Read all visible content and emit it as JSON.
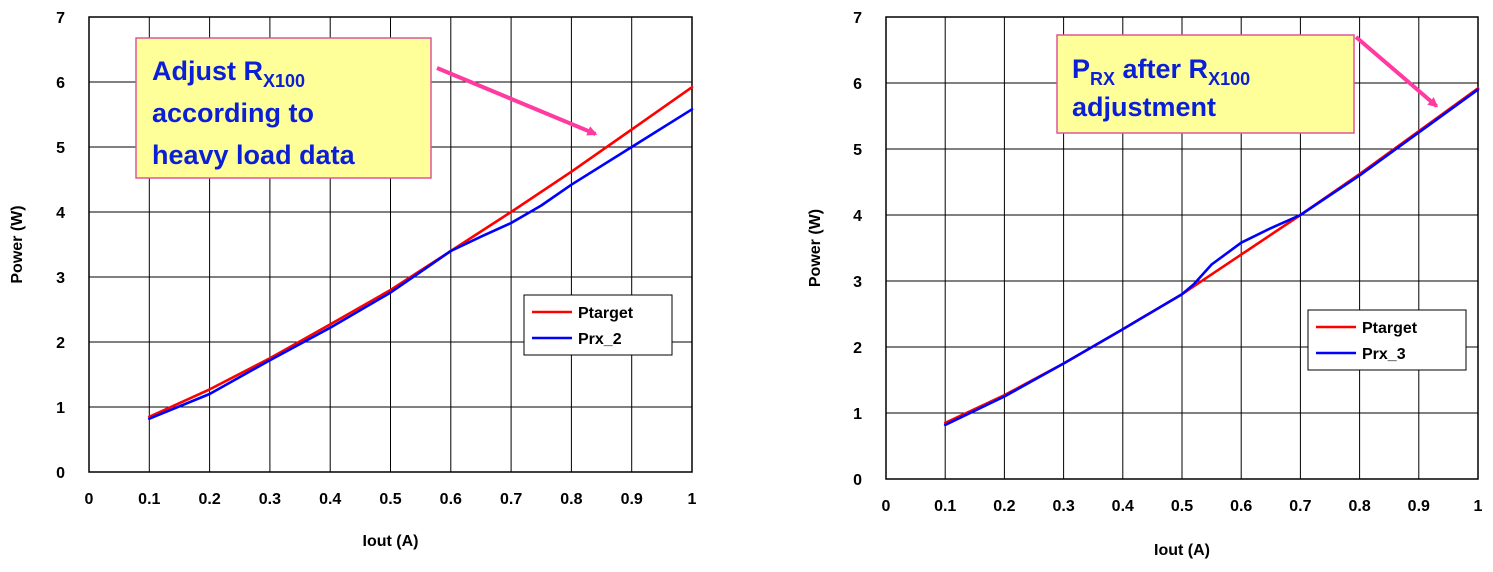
{
  "chart_data": [
    {
      "type": "line",
      "xlabel": "Iout (A)",
      "ylabel": "Power (W)",
      "xlim": [
        0,
        1
      ],
      "ylim": [
        0,
        7
      ],
      "xticks": [
        "0",
        "0.1",
        "0.2",
        "0.3",
        "0.4",
        "0.5",
        "0.6",
        "0.7",
        "0.8",
        "0.9",
        "1"
      ],
      "yticks": [
        "0",
        "1",
        "2",
        "3",
        "4",
        "5",
        "6",
        "7"
      ],
      "grid": true,
      "legend_position": "right-middle",
      "series": [
        {
          "name": "Ptarget",
          "color": "#ff0000",
          "x": [
            0.1,
            0.2,
            0.3,
            0.4,
            0.5,
            0.6,
            0.7,
            0.8,
            0.9,
            1.0
          ],
          "y": [
            0.85,
            1.27,
            1.75,
            2.27,
            2.8,
            3.4,
            4.0,
            4.62,
            5.27,
            5.92
          ]
        },
        {
          "name": "Prx_2",
          "color": "#0000ff",
          "x": [
            0.1,
            0.2,
            0.3,
            0.4,
            0.5,
            0.55,
            0.6,
            0.65,
            0.7,
            0.75,
            0.8,
            0.9,
            1.0
          ],
          "y": [
            0.82,
            1.2,
            1.72,
            2.22,
            2.76,
            3.08,
            3.4,
            3.62,
            3.83,
            4.1,
            4.42,
            5.0,
            5.58
          ]
        }
      ],
      "callout": {
        "lines": [
          {
            "text": "Adjust R",
            "sub": "X100"
          },
          {
            "text": "according to",
            "sub": ""
          },
          {
            "text": "heavy load data",
            "sub": ""
          }
        ],
        "arrow_target": {
          "x": 0.84,
          "y": 5.2
        }
      }
    },
    {
      "type": "line",
      "xlabel": "Iout (A)",
      "ylabel": "Power (W)",
      "xlim": [
        0,
        1
      ],
      "ylim": [
        0,
        7
      ],
      "xticks": [
        "0",
        "0.1",
        "0.2",
        "0.3",
        "0.4",
        "0.5",
        "0.6",
        "0.7",
        "0.8",
        "0.9",
        "1"
      ],
      "yticks": [
        "0",
        "1",
        "2",
        "3",
        "4",
        "5",
        "6",
        "7"
      ],
      "grid": true,
      "legend_position": "right-middle",
      "series": [
        {
          "name": "Ptarget",
          "color": "#ff0000",
          "x": [
            0.1,
            0.2,
            0.3,
            0.4,
            0.5,
            0.6,
            0.7,
            0.8,
            0.9,
            1.0
          ],
          "y": [
            0.85,
            1.27,
            1.75,
            2.27,
            2.8,
            3.4,
            4.0,
            4.62,
            5.27,
            5.92
          ]
        },
        {
          "name": "Prx_3",
          "color": "#0000ff",
          "x": [
            0.1,
            0.2,
            0.3,
            0.4,
            0.5,
            0.52,
            0.55,
            0.6,
            0.65,
            0.7,
            0.8,
            0.9,
            1.0
          ],
          "y": [
            0.82,
            1.25,
            1.75,
            2.27,
            2.8,
            2.95,
            3.25,
            3.58,
            3.8,
            4.0,
            4.6,
            5.25,
            5.9
          ]
        }
      ],
      "callout": {
        "lines": [
          {
            "text": "P",
            "sub": "RX",
            "text2": " after R",
            "sub2": "X100"
          },
          {
            "text": "adjustment",
            "sub": ""
          }
        ],
        "arrow_target": {
          "x": 0.93,
          "y": 5.65
        }
      }
    }
  ]
}
